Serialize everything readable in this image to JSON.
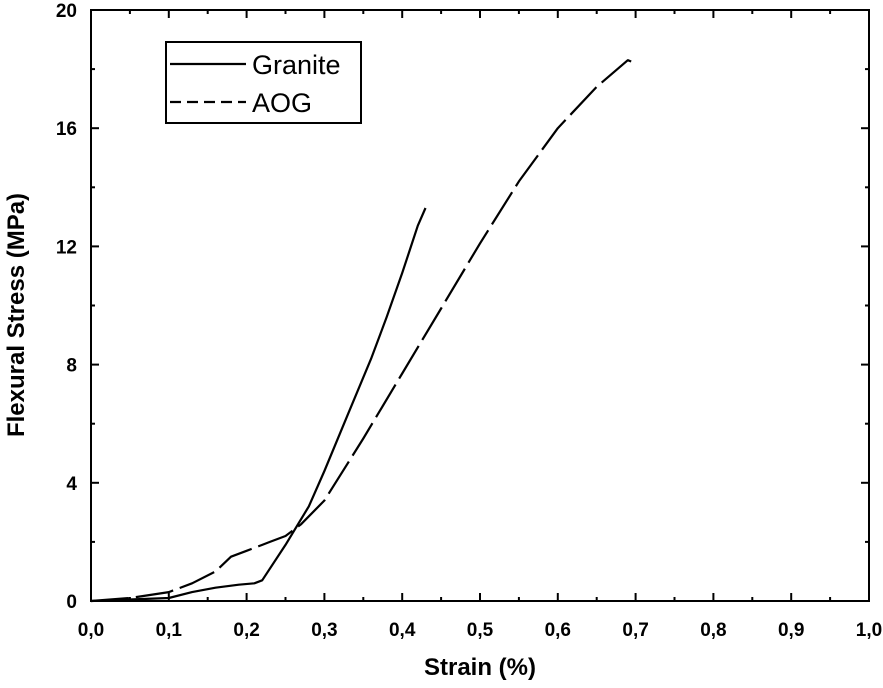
{
  "chart_data": {
    "type": "line",
    "xlabel": "Strain (%)",
    "ylabel": "Flexural Stress (MPa)",
    "xlim": [
      0.0,
      1.0
    ],
    "ylim": [
      0,
      20
    ],
    "x_ticks": [
      "0,0",
      "0,1",
      "0,2",
      "0,3",
      "0,4",
      "0,5",
      "0,6",
      "0,7",
      "0,8",
      "0,9",
      "1,0"
    ],
    "y_ticks": [
      "0",
      "4",
      "8",
      "12",
      "16",
      "20"
    ],
    "grid": false,
    "legend_position": "top-left",
    "series": [
      {
        "name": "Granite",
        "line_style": "solid",
        "color": "#000000",
        "x": [
          0.0,
          0.05,
          0.1,
          0.13,
          0.16,
          0.19,
          0.21,
          0.22,
          0.25,
          0.28,
          0.3,
          0.33,
          0.36,
          0.38,
          0.4,
          0.41,
          0.42,
          0.43
        ],
        "y": [
          0.0,
          0.05,
          0.1,
          0.3,
          0.45,
          0.55,
          0.6,
          0.7,
          1.9,
          3.2,
          4.4,
          6.3,
          8.2,
          9.6,
          11.1,
          11.9,
          12.7,
          13.3
        ]
      },
      {
        "name": "AOG",
        "line_style": "dashed",
        "color": "#000000",
        "x": [
          0.0,
          0.05,
          0.1,
          0.13,
          0.16,
          0.18,
          0.2,
          0.22,
          0.23,
          0.25,
          0.27,
          0.3,
          0.35,
          0.4,
          0.45,
          0.5,
          0.55,
          0.6,
          0.65,
          0.69,
          0.7
        ],
        "y": [
          0.0,
          0.1,
          0.3,
          0.6,
          1.0,
          1.5,
          1.7,
          1.9,
          2.0,
          2.2,
          2.6,
          3.4,
          5.5,
          7.7,
          9.9,
          12.1,
          14.2,
          16.0,
          17.4,
          18.3,
          18.2
        ]
      }
    ]
  }
}
